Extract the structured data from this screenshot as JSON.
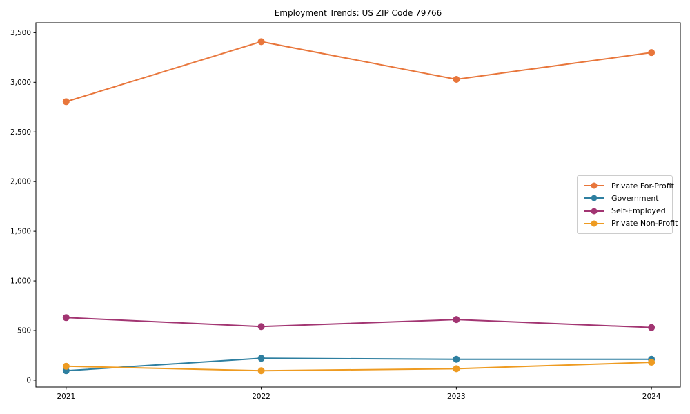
{
  "page": {
    "kind": "matplotlib-line-chart-screenshot",
    "background": "#ffffff"
  },
  "chart_data": {
    "type": "line",
    "title": "Employment Trends: US ZIP Code 79766",
    "xlabel": "",
    "ylabel": "",
    "x": [
      "2021",
      "2022",
      "2023",
      "2024"
    ],
    "series": [
      {
        "name": "Private For-Profit",
        "color": "#E8763B",
        "values": [
          2805,
          3410,
          3030,
          3300
        ]
      },
      {
        "name": "Government",
        "color": "#2E7FA0",
        "values": [
          95,
          220,
          210,
          210
        ]
      },
      {
        "name": "Self-Employed",
        "color": "#A23572",
        "values": [
          630,
          540,
          610,
          530
        ]
      },
      {
        "name": "Private Non-Profit",
        "color": "#EE9B21",
        "values": [
          140,
          95,
          115,
          180
        ]
      }
    ],
    "yticks": [
      0,
      500,
      1000,
      1500,
      2000,
      2500,
      3000,
      3500
    ],
    "ytick_labels": [
      "0",
      "500",
      "1,000",
      "1,500",
      "2,000",
      "2,500",
      "3,000",
      "3,500"
    ],
    "ylim": [
      -70,
      3600
    ],
    "xlim": [
      -0.155,
      3.148
    ],
    "grid": false,
    "marker": "circle",
    "legend_position": "center right",
    "frame_color": "#000000",
    "tick_color": "#000000"
  }
}
